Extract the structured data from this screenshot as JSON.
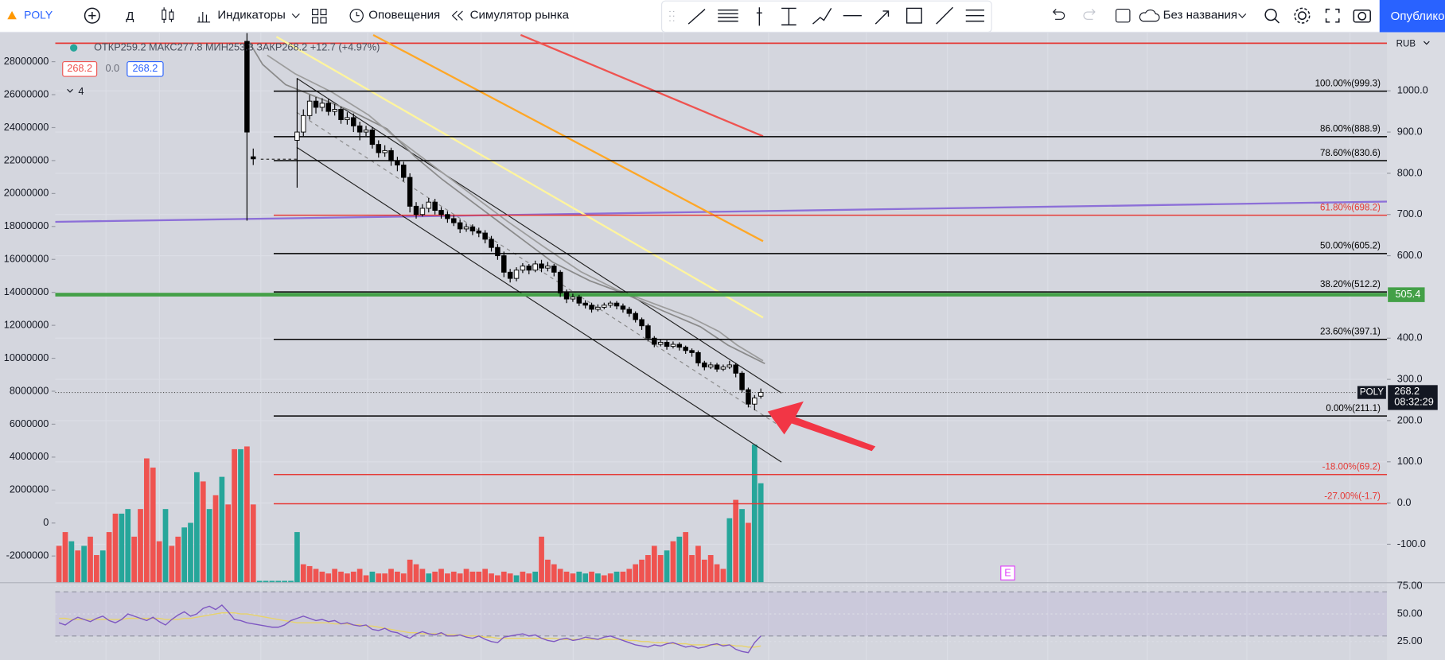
{
  "toolbar": {
    "symbol": "POLY",
    "interval": "Д",
    "indicators": "Индикаторы",
    "alerts": "Оповещения",
    "replay": "Симулятор рынка",
    "layout_name": "Без названия",
    "publish": "Опублико"
  },
  "legend": {
    "ohlc_text": "ОТКР259.2 МАКС277.8 МИН253.3 ЗАКР268.2 +12.7 (+4.97%)",
    "bid": "268.2",
    "spread": "0.0",
    "ask": "268.2",
    "indicators_count": "4"
  },
  "chart_data": {
    "type": "candlestick",
    "currency": "RUB",
    "symbol_tag": "POLY",
    "countdown": "08:32:29",
    "earnings_marker": "E",
    "ylim": [
      -193.2,
      1142.2
    ],
    "yticks": [
      {
        "value": 1000,
        "label": "1000.0"
      },
      {
        "value": 900,
        "label": "900.0"
      },
      {
        "value": 800,
        "label": "800.0"
      },
      {
        "value": 700,
        "label": "700.0"
      },
      {
        "value": 600,
        "label": "600.0"
      },
      {
        "value": 400,
        "label": "400.0"
      },
      {
        "value": 300,
        "label": "300.0"
      },
      {
        "value": 200,
        "label": "200.0"
      },
      {
        "value": 100,
        "label": "100.0"
      },
      {
        "value": 0,
        "label": "0.0"
      },
      {
        "value": -100,
        "label": "-100.0"
      }
    ],
    "y2lim": [
      -3620000,
      29790000
    ],
    "y2ticks": [
      28000000,
      26000000,
      24000000,
      22000000,
      20000000,
      18000000,
      16000000,
      14000000,
      12000000,
      10000000,
      8000000,
      6000000,
      4000000,
      2000000,
      0,
      -2000000
    ],
    "grid": true,
    "up_color": "#ffffff",
    "down_color": "#000000",
    "volume_up_color": "#26a69a",
    "volume_down_color": "#ef5350",
    "current_price": 268.2,
    "level_tag": 505.4,
    "level_color": "#43a047",
    "fib_levels": [
      {
        "value": 999.3,
        "label": "100.00%(999.3)",
        "color": "#000000"
      },
      {
        "value": 888.9,
        "label": "86.00%(888.9)",
        "color": "#000000"
      },
      {
        "value": 830.6,
        "label": "78.60%(830.6)",
        "color": "#000000"
      },
      {
        "value": 698.2,
        "label": "61.80%(698.2)",
        "color": "#e53935"
      },
      {
        "value": 605.2,
        "label": "50.00%(605.2)",
        "color": "#000000"
      },
      {
        "value": 512.2,
        "label": "38.20%(512.2)",
        "color": "#000000"
      },
      {
        "value": 397.1,
        "label": "23.60%(397.1)",
        "color": "#000000"
      },
      {
        "value": 211.1,
        "label": "0.00%(211.1)",
        "color": "#000000"
      },
      {
        "value": 69.2,
        "label": "-18.00%(69.2)",
        "color": "#e53935"
      },
      {
        "value": -1.7,
        "label": "-27.00%(-1.7)",
        "color": "#e53935"
      }
    ],
    "open": [
      null,
      null,
      null,
      null,
      null,
      null,
      null,
      null,
      null,
      null,
      null,
      null,
      null,
      null,
      null,
      null,
      null,
      null,
      null,
      null,
      null,
      null,
      null,
      null,
      null,
      null,
      null,
      null,
      null,
      null,
      1120,
      840,
      null,
      null,
      null,
      null,
      null,
      null,
      880,
      900,
      940,
      975,
      960,
      970,
      950,
      955,
      930,
      935,
      915,
      900,
      905,
      870,
      850,
      855,
      830,
      820,
      790,
      720,
      700,
      715,
      730,
      710,
      700,
      690,
      680,
      665,
      670,
      660,
      655,
      640,
      620,
      600,
      560,
      545,
      565,
      575,
      565,
      580,
      570,
      575,
      560,
      510,
      495,
      500,
      485,
      480,
      470,
      475,
      480,
      485,
      478,
      470,
      460,
      445,
      430,
      400,
      385,
      390,
      380,
      385,
      378,
      370,
      365,
      340,
      330,
      335,
      325,
      330,
      335,
      315,
      275,
      240,
      259.2
    ],
    "high": [
      null,
      null,
      null,
      null,
      null,
      null,
      null,
      null,
      null,
      null,
      null,
      null,
      null,
      null,
      null,
      null,
      null,
      null,
      null,
      null,
      null,
      null,
      null,
      null,
      null,
      null,
      null,
      null,
      null,
      null,
      1140,
      860,
      null,
      null,
      null,
      null,
      null,
      null,
      1030,
      955,
      990,
      985,
      982,
      980,
      968,
      962,
      948,
      945,
      925,
      915,
      912,
      880,
      868,
      862,
      840,
      828,
      800,
      730,
      725,
      740,
      738,
      718,
      708,
      698,
      688,
      678,
      676,
      668,
      662,
      648,
      628,
      610,
      568,
      572,
      582,
      580,
      588,
      590,
      585,
      580,
      565,
      518,
      508,
      505,
      492,
      486,
      482,
      486,
      490,
      490,
      484,
      476,
      465,
      450,
      435,
      405,
      396,
      395,
      392,
      390,
      382,
      375,
      370,
      345,
      342,
      340,
      336,
      345,
      340,
      320,
      280,
      262,
      277.8
    ],
    "low": [
      null,
      null,
      null,
      null,
      null,
      null,
      null,
      null,
      null,
      null,
      null,
      null,
      null,
      null,
      null,
      null,
      null,
      null,
      null,
      null,
      null,
      null,
      null,
      null,
      null,
      null,
      null,
      null,
      null,
      null,
      685,
      820,
      null,
      null,
      null,
      null,
      null,
      null,
      765,
      890,
      930,
      945,
      950,
      940,
      940,
      920,
      918,
      900,
      880,
      890,
      860,
      838,
      840,
      818,
      805,
      780,
      705,
      690,
      695,
      705,
      700,
      690,
      680,
      672,
      655,
      658,
      650,
      645,
      630,
      610,
      590,
      548,
      535,
      538,
      558,
      555,
      560,
      560,
      562,
      550,
      500,
      485,
      488,
      478,
      472,
      462,
      465,
      470,
      474,
      470,
      462,
      452,
      438,
      420,
      392,
      378,
      380,
      372,
      375,
      370,
      362,
      355,
      332,
      322,
      325,
      318,
      320,
      325,
      305,
      268,
      232,
      225,
      253.3
    ],
    "close": [
      null,
      null,
      null,
      null,
      null,
      null,
      null,
      null,
      null,
      null,
      null,
      null,
      null,
      null,
      null,
      null,
      null,
      null,
      null,
      null,
      null,
      null,
      null,
      null,
      null,
      null,
      null,
      null,
      null,
      null,
      900,
      835,
      null,
      null,
      null,
      null,
      null,
      null,
      900,
      940,
      975,
      960,
      970,
      950,
      955,
      930,
      935,
      915,
      900,
      905,
      870,
      850,
      855,
      830,
      820,
      790,
      720,
      700,
      715,
      730,
      710,
      700,
      690,
      680,
      665,
      670,
      660,
      655,
      640,
      620,
      600,
      560,
      545,
      565,
      575,
      565,
      580,
      570,
      575,
      560,
      510,
      495,
      500,
      485,
      480,
      470,
      475,
      480,
      485,
      478,
      470,
      460,
      445,
      430,
      400,
      385,
      390,
      380,
      385,
      378,
      370,
      365,
      340,
      330,
      335,
      325,
      330,
      335,
      315,
      275,
      240,
      255,
      268.2
    ],
    "volume": [
      40,
      55,
      45,
      35,
      40,
      50,
      30,
      35,
      55,
      75,
      75,
      80,
      50,
      80,
      135,
      125,
      45,
      80,
      40,
      50,
      60,
      65,
      120,
      110,
      80,
      95,
      115,
      85,
      145,
      145,
      148,
      85,
      2,
      2,
      2,
      2,
      2,
      2,
      55,
      20,
      18,
      15,
      12,
      10,
      15,
      12,
      10,
      12,
      15,
      8,
      12,
      10,
      10,
      15,
      12,
      10,
      25,
      20,
      15,
      10,
      12,
      15,
      10,
      12,
      10,
      15,
      12,
      12,
      15,
      10,
      8,
      12,
      10,
      8,
      12,
      10,
      12,
      50,
      25,
      20,
      15,
      12,
      10,
      12,
      10,
      12,
      10,
      8,
      10,
      12,
      12,
      15,
      20,
      25,
      30,
      40,
      30,
      35,
      45,
      50,
      55,
      30,
      40,
      25,
      30,
      20,
      15,
      70,
      90,
      80,
      65,
      150,
      108
    ],
    "volume_up": [
      0,
      0,
      1,
      0,
      1,
      0,
      0,
      1,
      0,
      0,
      1,
      1,
      0,
      0,
      0,
      0,
      0,
      1,
      0,
      0,
      1,
      1,
      1,
      0,
      1,
      0,
      1,
      0,
      0,
      1,
      0,
      0,
      1,
      1,
      1,
      1,
      1,
      1,
      1,
      0,
      0,
      0,
      0,
      0,
      0,
      0,
      0,
      0,
      0,
      0,
      1,
      0,
      0,
      0,
      0,
      0,
      0,
      0,
      0,
      1,
      0,
      0,
      0,
      0,
      0,
      0,
      0,
      0,
      0,
      0,
      0,
      0,
      0,
      1,
      0,
      0,
      1,
      0,
      0,
      0,
      0,
      0,
      0,
      1,
      1,
      0,
      1,
      0,
      0,
      1,
      0,
      0,
      0,
      0,
      0,
      0,
      0,
      1,
      0,
      1,
      0,
      0,
      0,
      0,
      0,
      0,
      0,
      1,
      0,
      1,
      0,
      1,
      1
    ],
    "rsi": {
      "color": "#7e57c2",
      "ma_color": "#e8d36a",
      "ylim": [
        8.3,
        78.3
      ],
      "band": [
        30,
        70
      ],
      "yticks": [
        {
          "value": 75,
          "label": "75.00"
        },
        {
          "value": 50,
          "label": "50.00"
        },
        {
          "value": 25,
          "label": "25.00"
        }
      ],
      "values": [
        42,
        40,
        44,
        47,
        45,
        43,
        46,
        48,
        44,
        42,
        45,
        50,
        48,
        46,
        44,
        47,
        43,
        40,
        45,
        49,
        52,
        48,
        50,
        55,
        57,
        54,
        58,
        52,
        45,
        44,
        42,
        41,
        40,
        39,
        38,
        38,
        40,
        44,
        46,
        48,
        46,
        44,
        45,
        43,
        44,
        41,
        42,
        40,
        39,
        40,
        36,
        35,
        37,
        34,
        33,
        30,
        28,
        32,
        34,
        32,
        31,
        33,
        30,
        30,
        31,
        29,
        28,
        30,
        27,
        25,
        24,
        29,
        30,
        31,
        32,
        30,
        31,
        28,
        26,
        25,
        27,
        28,
        26,
        27,
        29,
        28,
        27,
        29,
        30,
        28,
        26,
        24,
        22,
        21,
        20,
        22,
        21,
        23,
        24,
        22,
        20,
        21,
        19,
        20,
        22,
        23,
        21,
        22,
        18,
        16,
        15,
        24,
        30
      ],
      "ma": [
        46,
        46,
        45,
        45,
        45,
        45,
        45,
        45,
        45,
        45,
        45,
        46,
        46,
        46,
        46,
        46,
        46,
        45,
        45,
        45,
        46,
        46,
        47,
        48,
        49,
        50,
        51,
        51,
        51,
        50,
        50,
        49,
        48,
        47,
        46,
        45,
        44,
        43,
        42,
        42,
        42,
        42,
        42,
        42,
        41,
        41,
        41,
        40,
        40,
        39,
        39,
        38,
        37,
        36,
        35,
        34,
        33,
        33,
        32,
        32,
        32,
        32,
        31,
        31,
        31,
        30,
        30,
        30,
        29,
        29,
        28,
        28,
        28,
        28,
        28,
        28,
        28,
        28,
        28,
        28,
        27,
        27,
        27,
        27,
        27,
        27,
        27,
        27,
        27,
        27,
        27,
        26,
        26,
        25,
        25,
        24,
        24,
        24,
        23,
        23,
        23,
        22,
        22,
        22,
        22,
        22,
        22,
        22,
        21,
        21,
        20,
        20,
        21
      ]
    }
  }
}
